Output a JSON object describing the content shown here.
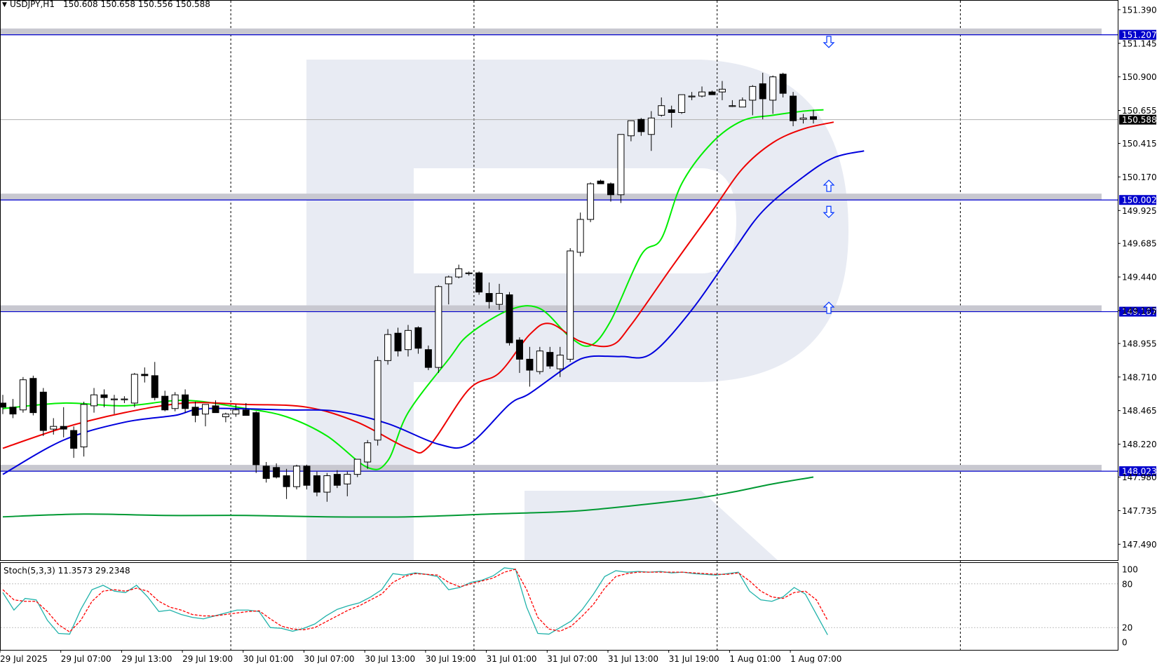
{
  "header": {
    "dropdown_glyph": "▼",
    "symbol_label": "USDJPY,H1",
    "ohlc_text": "150.608 150.658 150.556 150.588"
  },
  "stoch": {
    "label": "Stoch(5,3,3) 11.3573 29.2348",
    "levels": [
      "100",
      "80",
      "20",
      "0"
    ],
    "k_color": "#20b2aa",
    "d_color": "#ff0000"
  },
  "colors": {
    "up_candle": "#ffffff",
    "down_candle": "#000000",
    "ma_green": "#00ee00",
    "ma_red": "#ee0000",
    "ma_blue": "#0000dd",
    "ma_long": "#009933",
    "level_line": "#0000cc",
    "level_band": "#c8c8d0",
    "price_tag_bg": "#0000cc"
  },
  "chart_data": {
    "type": "candlestick",
    "symbol": "USDJPY",
    "timeframe": "H1",
    "y_ticks": [
      "151.390",
      "151.145",
      "150.900",
      "150.655",
      "150.415",
      "150.170",
      "149.925",
      "149.685",
      "149.440",
      "149.195",
      "148.955",
      "148.710",
      "148.465",
      "148.220",
      "147.980",
      "147.735",
      "147.490"
    ],
    "ylim": [
      147.42,
      151.42
    ],
    "x_ticks": [
      "29 Jul 2025",
      "29 Jul 07:00",
      "29 Jul 13:00",
      "29 Jul 19:00",
      "30 Jul 01:00",
      "30 Jul 07:00",
      "30 Jul 13:00",
      "30 Jul 19:00",
      "31 Jul 01:00",
      "31 Jul 07:00",
      "31 Jul 13:00",
      "31 Jul 19:00",
      "1 Aug 01:00",
      "1 Aug 07:00"
    ],
    "x_tick_candle_index": [
      0,
      6,
      12,
      18,
      24,
      30,
      36,
      42,
      48,
      54,
      60,
      66,
      72,
      78
    ],
    "day_separators_after_candle": [
      22.5,
      46.5,
      70.5,
      94.5
    ],
    "levels": [
      {
        "label": "151.207",
        "value": 151.207
      },
      {
        "label": "150.002",
        "value": 150.002
      },
      {
        "label": "149.187",
        "value": 149.187
      },
      {
        "label": "148.023",
        "value": 148.023
      }
    ],
    "current_price": {
      "label": "150.588",
      "value": 150.588
    },
    "arrows": [
      {
        "direction": "down",
        "candle": 80,
        "value": 151.16
      },
      {
        "direction": "up",
        "candle": 80,
        "value": 150.1
      },
      {
        "direction": "down",
        "candle": 80,
        "value": 149.92
      },
      {
        "direction": "up",
        "candle": 80,
        "value": 149.21
      }
    ],
    "candles": [
      [
        148.52,
        148.58,
        148.44,
        148.49
      ],
      [
        148.49,
        148.55,
        148.41,
        148.44
      ],
      [
        148.47,
        148.71,
        148.45,
        148.69
      ],
      [
        148.7,
        148.72,
        148.43,
        148.45
      ],
      [
        148.6,
        148.63,
        148.28,
        148.32
      ],
      [
        148.33,
        148.41,
        148.29,
        148.35
      ],
      [
        148.35,
        148.49,
        148.27,
        148.33
      ],
      [
        148.32,
        148.35,
        148.12,
        148.19
      ],
      [
        148.2,
        148.53,
        148.13,
        148.51
      ],
      [
        148.5,
        148.63,
        148.45,
        148.58
      ],
      [
        148.58,
        148.62,
        148.49,
        148.56
      ],
      [
        148.55,
        148.58,
        148.44,
        148.55
      ],
      [
        148.55,
        148.57,
        148.52,
        148.55
      ],
      [
        148.52,
        148.74,
        148.49,
        148.73
      ],
      [
        148.73,
        148.78,
        148.67,
        148.72
      ],
      [
        148.72,
        148.82,
        148.54,
        148.56
      ],
      [
        148.57,
        148.61,
        148.46,
        148.47
      ],
      [
        148.48,
        148.6,
        148.46,
        148.58
      ],
      [
        148.58,
        148.62,
        148.45,
        148.48
      ],
      [
        148.49,
        148.53,
        148.38,
        148.43
      ],
      [
        148.44,
        148.51,
        148.35,
        148.51
      ],
      [
        148.5,
        148.54,
        148.46,
        148.45
      ],
      [
        148.42,
        148.45,
        148.38,
        148.44
      ],
      [
        148.44,
        148.51,
        148.42,
        148.47
      ],
      [
        148.47,
        148.52,
        148.45,
        148.43
      ],
      [
        148.45,
        148.46,
        148.01,
        148.07
      ],
      [
        148.06,
        148.09,
        147.94,
        147.97
      ],
      [
        148.05,
        148.08,
        147.97,
        147.98
      ],
      [
        147.99,
        148.04,
        147.82,
        147.91
      ],
      [
        147.91,
        148.07,
        147.89,
        148.06
      ],
      [
        148.06,
        148.07,
        147.89,
        147.92
      ],
      [
        147.99,
        148.02,
        147.84,
        147.87
      ],
      [
        147.87,
        148.01,
        147.8,
        147.99
      ],
      [
        148.0,
        148.03,
        147.9,
        147.92
      ],
      [
        147.93,
        148.02,
        147.84,
        148.0
      ],
      [
        148.0,
        148.11,
        147.98,
        148.11
      ],
      [
        148.09,
        148.25,
        148.04,
        148.23
      ],
      [
        148.25,
        148.86,
        148.21,
        148.83
      ],
      [
        148.83,
        149.06,
        148.8,
        149.02
      ],
      [
        149.03,
        149.07,
        148.86,
        148.9
      ],
      [
        148.91,
        149.09,
        148.86,
        149.05
      ],
      [
        149.07,
        149.08,
        148.88,
        148.92
      ],
      [
        148.91,
        148.94,
        148.76,
        148.78
      ],
      [
        148.78,
        149.38,
        148.74,
        149.37
      ],
      [
        149.39,
        149.45,
        149.24,
        149.44
      ],
      [
        149.44,
        149.53,
        149.43,
        149.5
      ],
      [
        149.47,
        149.48,
        149.45,
        149.47
      ],
      [
        149.47,
        149.48,
        149.31,
        149.33
      ],
      [
        149.32,
        149.4,
        149.21,
        149.26
      ],
      [
        149.24,
        149.39,
        149.2,
        149.32
      ],
      [
        149.31,
        149.33,
        148.94,
        148.96
      ],
      [
        148.98,
        149.0,
        148.74,
        148.84
      ],
      [
        148.84,
        148.93,
        148.64,
        148.76
      ],
      [
        148.75,
        148.93,
        148.73,
        148.9
      ],
      [
        148.89,
        148.93,
        148.77,
        148.79
      ],
      [
        148.77,
        148.93,
        148.71,
        148.87
      ],
      [
        148.84,
        149.65,
        148.82,
        149.63
      ],
      [
        149.62,
        149.91,
        149.59,
        149.86
      ],
      [
        149.86,
        150.13,
        149.84,
        150.12
      ],
      [
        150.14,
        150.15,
        150.12,
        150.12
      ],
      [
        150.12,
        150.13,
        149.99,
        150.04
      ],
      [
        150.04,
        150.48,
        149.98,
        150.48
      ],
      [
        150.47,
        150.58,
        150.43,
        150.58
      ],
      [
        150.59,
        150.6,
        150.47,
        150.5
      ],
      [
        150.48,
        150.65,
        150.36,
        150.6
      ],
      [
        150.62,
        150.75,
        150.61,
        150.69
      ],
      [
        150.66,
        150.69,
        150.53,
        150.64
      ],
      [
        150.64,
        150.77,
        150.63,
        150.77
      ],
      [
        150.76,
        150.79,
        150.73,
        150.76
      ],
      [
        150.76,
        150.83,
        150.75,
        150.79
      ],
      [
        150.79,
        150.8,
        150.77,
        150.77
      ],
      [
        150.79,
        150.87,
        150.73,
        150.81
      ],
      [
        150.69,
        150.73,
        150.68,
        150.69
      ],
      [
        150.68,
        150.75,
        150.68,
        150.73
      ],
      [
        150.73,
        150.84,
        150.62,
        150.83
      ],
      [
        150.85,
        150.93,
        150.59,
        150.74
      ],
      [
        150.73,
        150.91,
        150.63,
        150.9
      ],
      [
        150.92,
        150.93,
        150.75,
        150.78
      ],
      [
        150.76,
        150.79,
        150.54,
        150.58
      ],
      [
        150.59,
        150.63,
        150.56,
        150.6
      ],
      [
        150.61,
        150.66,
        150.56,
        150.59
      ]
    ],
    "series": [
      {
        "color": "#00ee00",
        "points": [
          [
            0,
            148.48
          ],
          [
            6,
            148.52
          ],
          [
            12,
            148.5
          ],
          [
            18,
            148.54
          ],
          [
            24,
            148.48
          ],
          [
            28,
            148.42
          ],
          [
            32,
            148.28
          ],
          [
            36,
            148.05
          ],
          [
            38,
            148.1
          ],
          [
            40,
            148.45
          ],
          [
            44,
            148.84
          ],
          [
            46,
            149.02
          ],
          [
            50,
            149.2
          ],
          [
            53,
            149.21
          ],
          [
            56,
            149.0
          ],
          [
            58,
            148.94
          ],
          [
            60,
            149.12
          ],
          [
            63,
            149.6
          ],
          [
            65,
            149.72
          ],
          [
            67,
            150.12
          ],
          [
            70,
            150.42
          ],
          [
            73,
            150.58
          ],
          [
            76,
            150.62
          ],
          [
            79,
            150.65
          ],
          [
            81,
            150.66
          ]
        ]
      },
      {
        "color": "#ee0000",
        "points": [
          [
            0,
            148.19
          ],
          [
            6,
            148.34
          ],
          [
            12,
            148.45
          ],
          [
            18,
            148.52
          ],
          [
            24,
            148.51
          ],
          [
            30,
            148.49
          ],
          [
            35,
            148.38
          ],
          [
            40,
            148.19
          ],
          [
            42,
            148.2
          ],
          [
            46,
            148.62
          ],
          [
            49,
            148.74
          ],
          [
            52,
            149.02
          ],
          [
            54,
            149.1
          ],
          [
            57,
            148.97
          ],
          [
            60,
            148.94
          ],
          [
            62,
            149.09
          ],
          [
            66,
            149.51
          ],
          [
            70,
            149.92
          ],
          [
            73,
            150.23
          ],
          [
            76,
            150.42
          ],
          [
            79,
            150.52
          ],
          [
            82,
            150.57
          ]
        ]
      },
      {
        "color": "#0000dd",
        "points": [
          [
            0,
            148.0
          ],
          [
            6,
            148.25
          ],
          [
            12,
            148.38
          ],
          [
            17,
            148.43
          ],
          [
            20,
            148.48
          ],
          [
            28,
            148.47
          ],
          [
            33,
            148.46
          ],
          [
            38,
            148.37
          ],
          [
            43,
            148.22
          ],
          [
            46,
            148.22
          ],
          [
            50,
            148.51
          ],
          [
            52,
            148.59
          ],
          [
            56,
            148.8
          ],
          [
            58,
            148.86
          ],
          [
            61,
            148.86
          ],
          [
            64,
            148.88
          ],
          [
            68,
            149.2
          ],
          [
            72,
            149.62
          ],
          [
            75,
            149.92
          ],
          [
            79,
            150.17
          ],
          [
            82,
            150.31
          ],
          [
            85,
            150.36
          ]
        ]
      },
      {
        "color": "#009933",
        "points": [
          [
            0,
            147.69
          ],
          [
            8,
            147.71
          ],
          [
            16,
            147.7
          ],
          [
            24,
            147.7
          ],
          [
            32,
            147.69
          ],
          [
            40,
            147.69
          ],
          [
            48,
            147.71
          ],
          [
            56,
            147.73
          ],
          [
            62,
            147.77
          ],
          [
            68,
            147.82
          ],
          [
            72,
            147.87
          ],
          [
            76,
            147.93
          ],
          [
            80,
            147.98
          ]
        ]
      }
    ],
    "stochastic": {
      "ylim": [
        0,
        100
      ],
      "k": [
        68,
        44,
        60,
        58,
        30,
        12,
        11,
        45,
        72,
        78,
        70,
        68,
        78,
        62,
        42,
        44,
        38,
        34,
        32,
        36,
        40,
        44,
        44,
        42,
        20,
        19,
        15,
        19,
        25,
        36,
        45,
        50,
        54,
        62,
        72,
        94,
        92,
        95,
        93,
        90,
        72,
        75,
        82,
        85,
        91,
        102,
        100,
        48,
        12,
        11,
        20,
        29,
        45,
        66,
        90,
        98,
        96,
        97,
        96,
        97,
        95,
        96,
        94,
        93,
        92,
        94,
        96,
        70,
        58,
        56,
        62,
        75,
        66,
        38,
        10
      ],
      "d": [
        72,
        58,
        56,
        56,
        42,
        24,
        14,
        30,
        56,
        70,
        72,
        70,
        74,
        70,
        56,
        48,
        44,
        38,
        36,
        36,
        38,
        40,
        42,
        43,
        32,
        22,
        18,
        17,
        20,
        28,
        36,
        44,
        50,
        58,
        66,
        82,
        90,
        94,
        93,
        92,
        82,
        76,
        80,
        84,
        88,
        96,
        100,
        72,
        34,
        18,
        15,
        22,
        36,
        52,
        74,
        90,
        94,
        96,
        96,
        96,
        96,
        96,
        95,
        94,
        93,
        93,
        95,
        84,
        70,
        62,
        60,
        68,
        70,
        58,
        30
      ]
    }
  }
}
